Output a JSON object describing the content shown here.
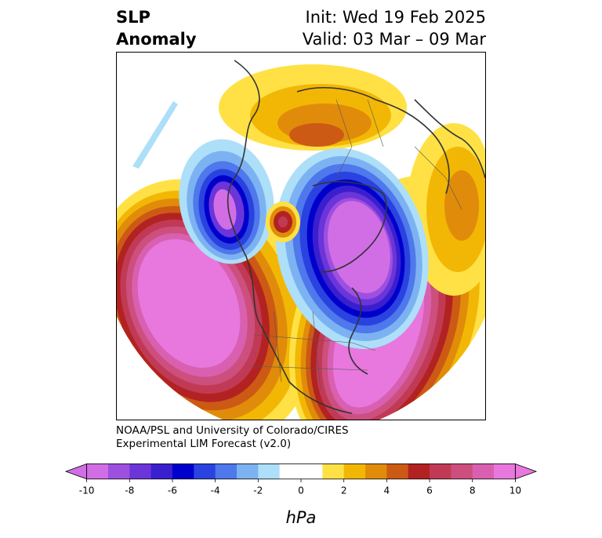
{
  "title": {
    "left_line1": "SLP",
    "left_line2": "Anomaly",
    "right_line1": "Init: Wed 19 Feb 2025",
    "right_line2": "Valid: 03 Mar – 09 Mar"
  },
  "credit": {
    "line1": "NOAA/PSL and University of Colorado/CIRES",
    "line2": "Experimental LIM Forecast (v2.0)"
  },
  "colorbar": {
    "unit": "hPa",
    "tick_labels": [
      "-10",
      "-8",
      "-6",
      "-4",
      "-2",
      "0",
      "2",
      "4",
      "6",
      "8",
      "10"
    ],
    "colors": [
      "#d16ee6",
      "#9d50e0",
      "#6b35d9",
      "#3a1fcf",
      "#0000cc",
      "#2a43e0",
      "#4e78eb",
      "#7db2f2",
      "#addff9",
      "#ffffff",
      "#ffffff",
      "#ffe145",
      "#f2b705",
      "#e08c0a",
      "#cc5a14",
      "#b32222",
      "#c13a55",
      "#cc4f7e",
      "#d960b0",
      "#e878de"
    ],
    "extend": "both"
  },
  "map": {
    "projection": "polar stereographic",
    "variable": "SLP anomaly",
    "centers": [
      {
        "sign": "negative",
        "region": "Arctic / Siberia side"
      },
      {
        "sign": "negative",
        "region": "Alaska / Bering"
      },
      {
        "sign": "positive",
        "region": "North Pacific"
      },
      {
        "sign": "positive",
        "region": "North Atlantic"
      },
      {
        "sign": "positive",
        "region": "Eastern Siberia pole"
      }
    ]
  }
}
